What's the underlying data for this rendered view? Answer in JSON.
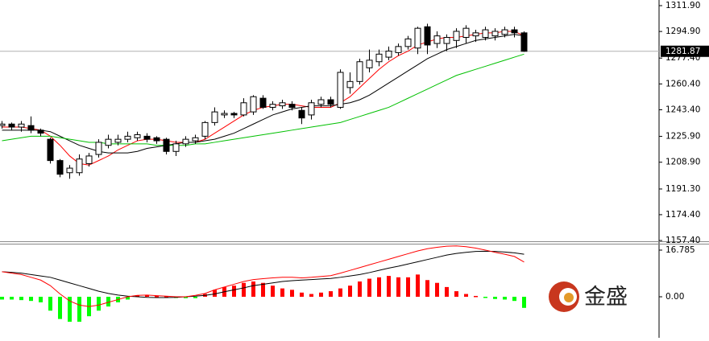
{
  "chart_data": [
    {
      "type": "candlestick",
      "categories": [
        null,
        null,
        null,
        null,
        null,
        null,
        null,
        null,
        null,
        null,
        null,
        null,
        null,
        null,
        null,
        null,
        null,
        null,
        null,
        null,
        null,
        null,
        null,
        null,
        null,
        null,
        null,
        null,
        null,
        null,
        null,
        null,
        null,
        null,
        null,
        null,
        null,
        null,
        null,
        null,
        null,
        null,
        null,
        null,
        null,
        null,
        null,
        null,
        null,
        null,
        null,
        null,
        null,
        null,
        null
      ],
      "open": [
        1233,
        1234,
        1232,
        1233,
        1230,
        1224,
        1210,
        1202,
        1202,
        1208,
        1214,
        1220,
        1222,
        1224,
        1225,
        1226,
        1225,
        1224,
        1216,
        1221,
        1223,
        1226,
        1235,
        1240,
        1241,
        1240,
        1242,
        1251,
        1245,
        1246,
        1247,
        1243,
        1240,
        1247,
        1250,
        1245,
        1258,
        1262,
        1271,
        1275,
        1278,
        1281,
        1285,
        1284,
        1298,
        1287,
        1287,
        1289,
        1291,
        1292,
        1291,
        1292,
        1293,
        1296,
        1294
      ],
      "high": [
        1236,
        1235,
        1236,
        1239,
        1231,
        1225,
        1211,
        1207,
        1214,
        1215,
        1224,
        1227,
        1227,
        1229,
        1229,
        1228,
        1226,
        1225,
        1223,
        1226,
        1227,
        1236,
        1245,
        1243,
        1242,
        1251,
        1253,
        1253,
        1249,
        1250,
        1249,
        1245,
        1250,
        1252,
        1252,
        1270,
        1268,
        1277,
        1283,
        1283,
        1285,
        1287,
        1292,
        1298,
        1300,
        1295,
        1293,
        1297,
        1299,
        1296,
        1298,
        1297,
        1298,
        1298,
        1295
      ],
      "low": [
        1231,
        1230,
        1229,
        1228,
        1226,
        1208,
        1199,
        1198,
        1200,
        1206,
        1212,
        1218,
        1220,
        1222,
        1223,
        1222,
        1221,
        1214,
        1213,
        1219,
        1221,
        1224,
        1233,
        1238,
        1238,
        1239,
        1240,
        1244,
        1243,
        1244,
        1243,
        1234,
        1237,
        1245,
        1245,
        1244,
        1254,
        1260,
        1268,
        1272,
        1276,
        1279,
        1283,
        1280,
        1280,
        1284,
        1282,
        1284,
        1287,
        1288,
        1289,
        1289,
        1291,
        1291,
        1281.5
      ],
      "close": [
        1234,
        1232,
        1234,
        1230,
        1228,
        1210,
        1201,
        1205,
        1211,
        1213,
        1222,
        1224,
        1224,
        1226,
        1227,
        1224,
        1223,
        1216,
        1221,
        1224,
        1225,
        1235,
        1242,
        1241,
        1240,
        1248,
        1252,
        1245,
        1247,
        1248,
        1245,
        1238,
        1248,
        1250,
        1247,
        1268,
        1262,
        1275,
        1276,
        1280,
        1282,
        1285,
        1290,
        1297,
        1286,
        1292,
        1291,
        1295,
        1297,
        1294,
        1296,
        1295,
        1296,
        1294,
        1281.87
      ],
      "up_color": "#ffffff",
      "down_color": "#000000",
      "outline_color": "#000000",
      "series": [
        {
          "color": "#ff0000",
          "values": [
            1232,
            1232,
            1232,
            1231,
            1230,
            1226,
            1220,
            1213,
            1208,
            1207,
            1210,
            1213,
            1217,
            1220,
            1223,
            1224,
            1224,
            1223,
            1222,
            1222,
            1222,
            1224,
            1228,
            1232,
            1236,
            1240,
            1243,
            1245,
            1246,
            1247,
            1247,
            1246,
            1245,
            1245,
            1245,
            1248,
            1252,
            1258,
            1264,
            1270,
            1275,
            1279,
            1282,
            1286,
            1288,
            1290,
            1291,
            1291,
            1292,
            1293,
            1294,
            1294,
            1295,
            1295,
            1292
          ]
        },
        {
          "color": "#000000",
          "values": [
            1230,
            1230,
            1230,
            1230,
            1230,
            1229,
            1226,
            1223,
            1220,
            1218,
            1216,
            1215,
            1215,
            1215,
            1216,
            1218,
            1219,
            1220,
            1221,
            1222,
            1222,
            1223,
            1224,
            1226,
            1228,
            1231,
            1234,
            1237,
            1240,
            1242,
            1244,
            1245,
            1246,
            1246,
            1246,
            1247,
            1248,
            1250,
            1253,
            1257,
            1261,
            1265,
            1269,
            1273,
            1277,
            1280,
            1283,
            1285,
            1287,
            1289,
            1290,
            1291,
            1292,
            1293,
            1292
          ]
        },
        {
          "color": "#00c000",
          "values": [
            1223,
            1224,
            1225,
            1226,
            1226,
            1226,
            1225,
            1224,
            1223,
            1222,
            1222,
            1221,
            1221,
            1221,
            1221,
            1221,
            1220,
            1220,
            1220,
            1220,
            1221,
            1221,
            1222,
            1223,
            1224,
            1225,
            1226,
            1227,
            1228,
            1229,
            1230,
            1231,
            1232,
            1233,
            1234,
            1235,
            1237,
            1239,
            1241,
            1243,
            1245,
            1248,
            1251,
            1254,
            1257,
            1260,
            1263,
            1266,
            1268,
            1270,
            1272,
            1274,
            1276,
            1278,
            1280
          ]
        }
      ],
      "last_price": 1281.87,
      "ylim": [
        1156.9,
        1315.6
      ],
      "yticks": [
        {
          "value": 1311.9,
          "label": "1311.90"
        },
        {
          "value": 1294.9,
          "label": "1294.90"
        },
        {
          "value": 1277.4,
          "label": "1277.40"
        },
        {
          "value": 1260.4,
          "label": "1260.40"
        },
        {
          "value": 1243.4,
          "label": "1243.40"
        },
        {
          "value": 1225.9,
          "label": "1225.90"
        },
        {
          "value": 1208.9,
          "label": "1208.90"
        },
        {
          "value": 1191.3,
          "label": "1191.30"
        },
        {
          "value": 1174.4,
          "label": "1174.40"
        },
        {
          "value": 1157.4,
          "label": "1157.40"
        }
      ]
    },
    {
      "type": "macd",
      "histogram": [
        -1,
        -1,
        -1.2,
        -1.5,
        -2,
        -5,
        -8,
        -9,
        -9,
        -7,
        -5,
        -3.5,
        -2,
        -1,
        0.5,
        0.5,
        0.3,
        0.2,
        -0.3,
        -0.5,
        -0.5,
        1,
        2.5,
        3.5,
        4,
        5,
        5.5,
        5,
        4,
        3,
        2.5,
        1.5,
        1,
        1.5,
        2,
        3,
        4,
        5.5,
        6.5,
        7,
        7.5,
        7,
        7,
        8,
        6,
        5,
        3.5,
        2,
        1,
        0.3,
        -0.3,
        -0.8,
        -1,
        -1.5,
        -4
      ],
      "positive_color": "#ff0000",
      "negative_color": "#00ff00",
      "series": [
        {
          "color": "#000000",
          "values": [
            9,
            8.8,
            8.5,
            8,
            7.5,
            7,
            6,
            5,
            4,
            3,
            2,
            1.2,
            0.6,
            0.2,
            0,
            -0.2,
            -0.3,
            -0.3,
            -0.2,
            0,
            0.2,
            0.5,
            1,
            1.8,
            2.5,
            3.2,
            4,
            4.5,
            5,
            5.5,
            5.8,
            6,
            6.2,
            6.4,
            6.6,
            7,
            7.5,
            8,
            8.7,
            9.5,
            10.3,
            11,
            11.8,
            12.6,
            13.4,
            14.2,
            15,
            15.6,
            16,
            16.3,
            16.4,
            16.3,
            16.1,
            15.8,
            15.3
          ]
        },
        {
          "color": "#ff0000",
          "values": [
            9,
            8.5,
            8,
            7,
            6,
            4,
            1,
            -1.5,
            -3,
            -3.5,
            -3,
            -2,
            -1,
            0,
            0.5,
            0.6,
            0.4,
            0.2,
            0,
            0,
            0.5,
            1.2,
            2.5,
            3.5,
            4.5,
            5.5,
            6.2,
            6.5,
            6.8,
            7,
            7,
            6.8,
            7,
            7.3,
            7.6,
            8.5,
            9.5,
            10.5,
            11.5,
            12.5,
            13.5,
            14.5,
            15.5,
            16.5,
            17.3,
            17.8,
            18.2,
            18.3,
            18,
            17.5,
            16.8,
            16,
            15.3,
            14.5,
            12.5
          ]
        }
      ],
      "ylim": [
        -14.76,
        19.1
      ],
      "yticks": [
        16.785,
        {
          "value": 0,
          "label": "0.00"
        }
      ]
    }
  ],
  "logo": {
    "text": "金盛"
  }
}
